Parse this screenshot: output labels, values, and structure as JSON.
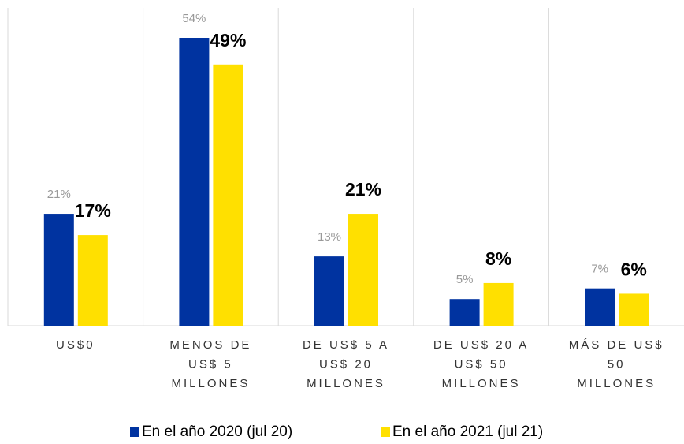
{
  "chart_data": {
    "type": "bar",
    "categories": [
      [
        "US$0"
      ],
      [
        "MENOS DE",
        "US$ 5",
        "MILLONES"
      ],
      [
        "DE US$ 5 A",
        "US$ 20",
        "MILLONES"
      ],
      [
        "DE US$ 20 A",
        "US$ 50",
        "MILLONES"
      ],
      [
        "MÁS DE US$",
        "50",
        "MILLONES"
      ]
    ],
    "series": [
      {
        "name": "En el año 2020 (jul 20)",
        "color": "#0033a0",
        "values": [
          21,
          54,
          13,
          5,
          7
        ],
        "value_labels": [
          "21%",
          "54%",
          "13%",
          "5%",
          "7%"
        ]
      },
      {
        "name": "En el año 2021 (jul 21)",
        "color": "#ffe000",
        "values": [
          17,
          49,
          21,
          8,
          6
        ],
        "value_labels": [
          "17%",
          "49%",
          "21%",
          "8%",
          "6%"
        ]
      }
    ],
    "legend": "bottom"
  }
}
